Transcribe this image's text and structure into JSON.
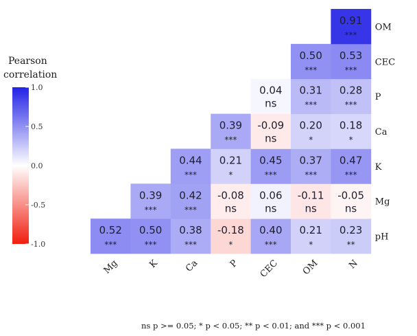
{
  "chart_data": {
    "type": "heatmap",
    "legend": {
      "title_lines": [
        "Pearson",
        "correlation"
      ],
      "ticks": [
        {
          "value": 1.0,
          "label": "1.0"
        },
        {
          "value": 0.5,
          "label": "0.5"
        },
        {
          "value": 0.0,
          "label": "0.0"
        },
        {
          "value": -0.5,
          "label": "-0.5"
        },
        {
          "value": -1.0,
          "label": "-1.0"
        }
      ],
      "colors": {
        "high": "#2222e6",
        "mid": "#ffffff",
        "low": "#f01e0f"
      },
      "placement": "left"
    },
    "x_labels": [
      "Mg",
      "K",
      "Ca",
      "P",
      "CEC",
      "OM",
      "N"
    ],
    "y_labels": [
      "pH",
      "Mg",
      "K",
      "Ca",
      "P",
      "CEC",
      "OM"
    ],
    "cells": [
      {
        "x": "Mg",
        "y": "pH",
        "value": 0.52,
        "label": "0.52",
        "sig": "***"
      },
      {
        "x": "K",
        "y": "pH",
        "value": 0.5,
        "label": "0.50",
        "sig": "***"
      },
      {
        "x": "Ca",
        "y": "pH",
        "value": 0.38,
        "label": "0.38",
        "sig": "***"
      },
      {
        "x": "P",
        "y": "pH",
        "value": -0.18,
        "label": "-0.18",
        "sig": "*"
      },
      {
        "x": "CEC",
        "y": "pH",
        "value": 0.4,
        "label": "0.40",
        "sig": "***"
      },
      {
        "x": "OM",
        "y": "pH",
        "value": 0.21,
        "label": "0.21",
        "sig": "*"
      },
      {
        "x": "N",
        "y": "pH",
        "value": 0.23,
        "label": "0.23",
        "sig": "**"
      },
      {
        "x": "K",
        "y": "Mg",
        "value": 0.39,
        "label": "0.39",
        "sig": "***"
      },
      {
        "x": "Ca",
        "y": "Mg",
        "value": 0.42,
        "label": "0.42",
        "sig": "***"
      },
      {
        "x": "P",
        "y": "Mg",
        "value": -0.08,
        "label": "-0.08",
        "sig": "ns"
      },
      {
        "x": "CEC",
        "y": "Mg",
        "value": 0.06,
        "label": "0.06",
        "sig": "ns"
      },
      {
        "x": "OM",
        "y": "Mg",
        "value": -0.11,
        "label": "-0.11",
        "sig": "ns"
      },
      {
        "x": "N",
        "y": "Mg",
        "value": -0.05,
        "label": "-0.05",
        "sig": "ns"
      },
      {
        "x": "Ca",
        "y": "K",
        "value": 0.44,
        "label": "0.44",
        "sig": "***"
      },
      {
        "x": "P",
        "y": "K",
        "value": 0.21,
        "label": "0.21",
        "sig": "*"
      },
      {
        "x": "CEC",
        "y": "K",
        "value": 0.45,
        "label": "0.45",
        "sig": "***"
      },
      {
        "x": "OM",
        "y": "K",
        "value": 0.37,
        "label": "0.37",
        "sig": "***"
      },
      {
        "x": "N",
        "y": "K",
        "value": 0.47,
        "label": "0.47",
        "sig": "***"
      },
      {
        "x": "P",
        "y": "Ca",
        "value": 0.39,
        "label": "0.39",
        "sig": "***"
      },
      {
        "x": "CEC",
        "y": "Ca",
        "value": -0.09,
        "label": "-0.09",
        "sig": "ns"
      },
      {
        "x": "OM",
        "y": "Ca",
        "value": 0.2,
        "label": "0.20",
        "sig": "*"
      },
      {
        "x": "N",
        "y": "Ca",
        "value": 0.18,
        "label": "0.18",
        "sig": "*"
      },
      {
        "x": "CEC",
        "y": "P",
        "value": 0.04,
        "label": "0.04",
        "sig": "ns"
      },
      {
        "x": "OM",
        "y": "P",
        "value": 0.31,
        "label": "0.31",
        "sig": "***"
      },
      {
        "x": "N",
        "y": "P",
        "value": 0.28,
        "label": "0.28",
        "sig": "***"
      },
      {
        "x": "OM",
        "y": "CEC",
        "value": 0.5,
        "label": "0.50",
        "sig": "***"
      },
      {
        "x": "N",
        "y": "CEC",
        "value": 0.53,
        "label": "0.53",
        "sig": "***"
      },
      {
        "x": "N",
        "y": "OM",
        "value": 0.91,
        "label": "0.91",
        "sig": "***"
      }
    ],
    "footnote": "ns p >= 0.05; * p < 0.05; ** p < 0.01; and *** p < 0.001"
  }
}
